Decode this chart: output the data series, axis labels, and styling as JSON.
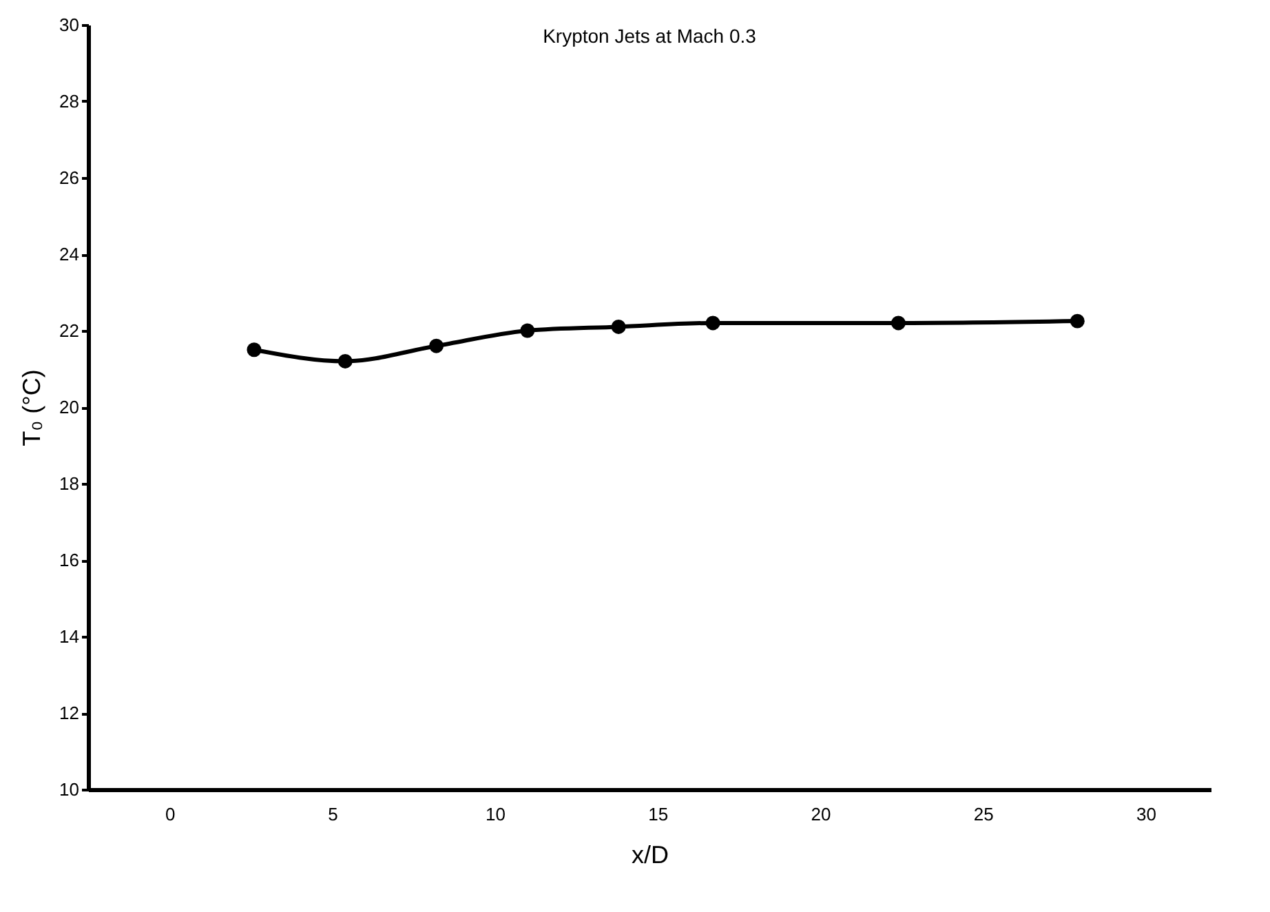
{
  "chart_data": {
    "type": "line",
    "title": "Krypton Jets at Mach 0.3",
    "xlabel": "x/D",
    "ylabel": "T₀ (°C)",
    "x": [
      2.6,
      5.4,
      8.2,
      11,
      13.8,
      16.7,
      22.4,
      27.9
    ],
    "series": [
      {
        "color": "#000000",
        "values": [
          21.5,
          21.2,
          21.6,
          22.0,
          22.1,
          22.2,
          22.2,
          22.25
        ]
      }
    ],
    "xlim": [
      -2.5,
      32
    ],
    "xticks": [
      0,
      5,
      10,
      15,
      20,
      25,
      30
    ],
    "ylim": [
      10,
      30
    ],
    "yticks": [
      10,
      12,
      14,
      16,
      18,
      20,
      22,
      24,
      26,
      28,
      30
    ],
    "grid": false,
    "marker": "circle",
    "line_style": "solid"
  }
}
